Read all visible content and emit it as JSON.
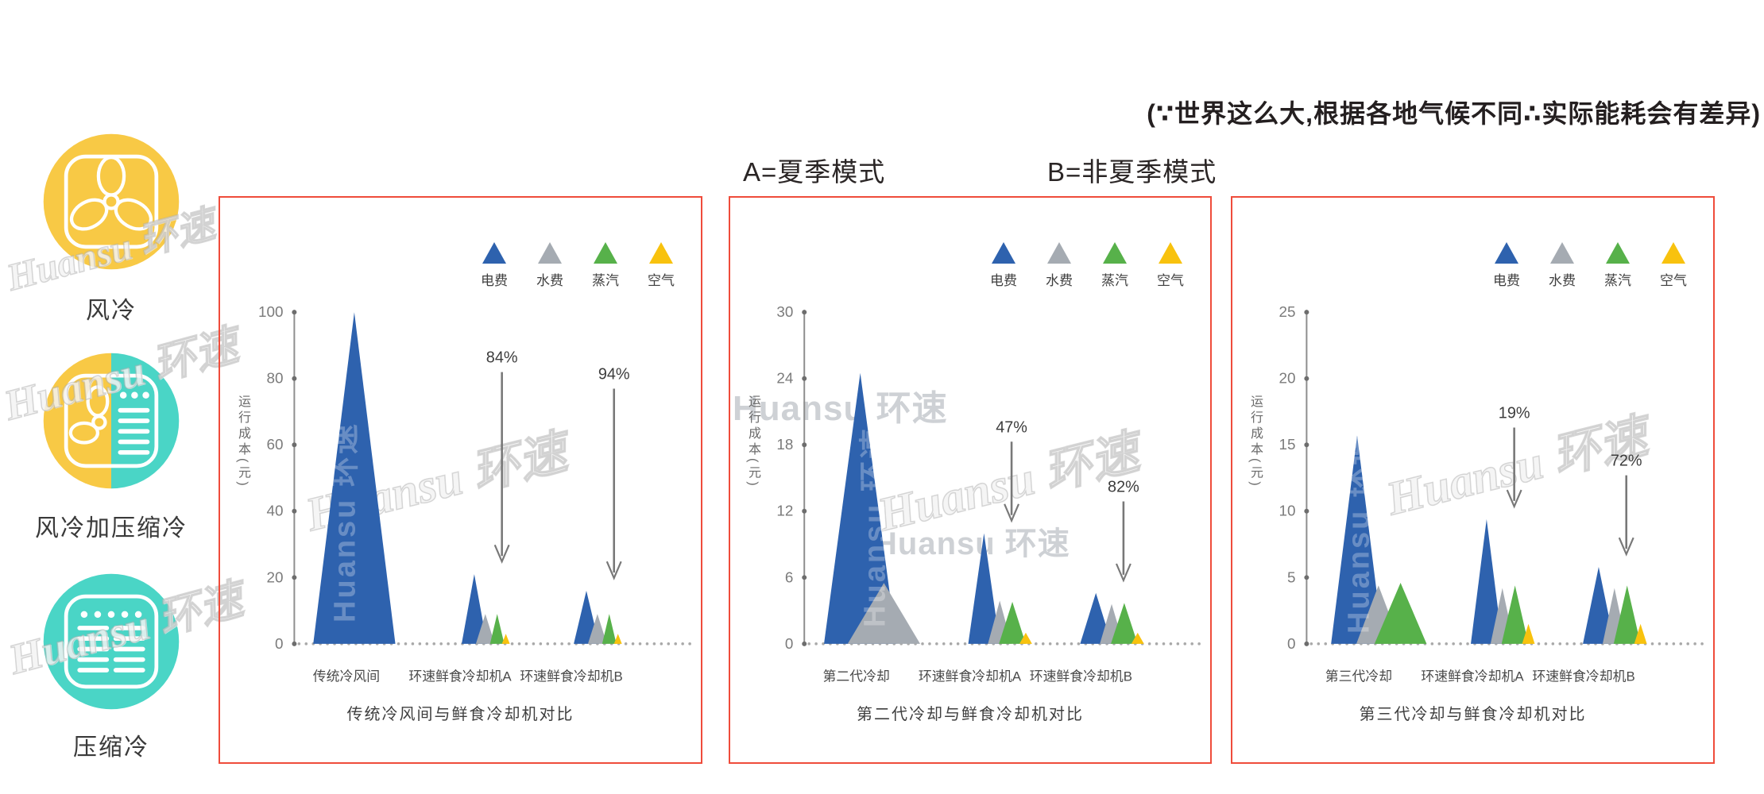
{
  "watermark": "Huansu 环速",
  "header": {
    "note": "(∵世界这么大,根据各地气候不同∴实际能耗会有差异)",
    "mode_a": "A=夏季模式",
    "mode_b": "B=非夏季模式"
  },
  "sidebar": {
    "items": [
      {
        "label": "风冷",
        "icon": "fan-icon"
      },
      {
        "label": "风冷加压缩冷",
        "icon": "fan-and-compressor-icon"
      },
      {
        "label": "压缩冷",
        "icon": "compressor-icon"
      }
    ]
  },
  "legend": [
    {
      "label": "电费",
      "color": "#2E62AE"
    },
    {
      "label": "水费",
      "color": "#A5ABB2"
    },
    {
      "label": "蒸汽",
      "color": "#57B14A"
    },
    {
      "label": "空气",
      "color": "#F8C20E"
    }
  ],
  "colors": {
    "panel_border": "#EF4C3B",
    "icon_yellow": "#F8C945",
    "icon_teal": "#4AD5C6",
    "axis": "#8E8E8E",
    "tick_dot": "#6D6D6D",
    "baseline_dot": "#A9A9A9",
    "arrow": "#787878"
  },
  "chart_data": [
    {
      "type": "area",
      "title": "传统冷风间与鲜食冷却机对比",
      "ylabel": "运行成本(元)",
      "xlabel": "",
      "ylim": [
        0,
        100
      ],
      "yticks": [
        0,
        20,
        40,
        60,
        80,
        100
      ],
      "grid": false,
      "legend_position": "top-right",
      "series_names": [
        "电费",
        "水费",
        "蒸汽",
        "空气"
      ],
      "categories": [
        "传统冷风间",
        "环速鲜食冷却机A",
        "环速鲜食冷却机B"
      ],
      "arrow_length": 240,
      "groups": [
        {
          "category": "传统冷风间",
          "wide": true,
          "values": {
            "电费": 100
          }
        },
        {
          "category": "环速鲜食冷却机A",
          "reduction_label": "84%",
          "values": {
            "电费": 21,
            "水费": 9,
            "蒸汽": 9,
            "空气": 3
          }
        },
        {
          "category": "环速鲜食冷却机B",
          "reduction_label": "94%",
          "values": {
            "电费": 16,
            "水费": 9,
            "蒸汽": 9,
            "空气": 3
          }
        }
      ]
    },
    {
      "type": "area",
      "title": "第二代冷却与鲜食冷却机对比",
      "ylabel": "运行成本(元)",
      "xlabel": "",
      "ylim": [
        0,
        30
      ],
      "yticks": [
        0,
        6,
        12,
        18,
        24,
        30
      ],
      "grid": false,
      "legend_position": "top-right",
      "series_names": [
        "电费",
        "水费",
        "蒸汽",
        "空气"
      ],
      "categories": [
        "第二代冷却",
        "环速鲜食冷却机A",
        "环速鲜食冷却机B"
      ],
      "arrow_length": 100,
      "groups": [
        {
          "category": "第二代冷却",
          "wide": true,
          "values": {
            "电费": 24.5,
            "水费": 5.5
          }
        },
        {
          "category": "环速鲜食冷却机A",
          "reduction_label": "47%",
          "values": {
            "电费": 10,
            "水费": 3.9,
            "蒸汽": 3.8,
            "空气": 1
          }
        },
        {
          "category": "环速鲜食冷却机B",
          "reduction_label": "82%",
          "values": {
            "电费": 4.6,
            "水费": 3.6,
            "蒸汽": 3.7,
            "空气": 1
          }
        }
      ]
    },
    {
      "type": "area",
      "title": "第三代冷却与鲜食冷却机对比",
      "ylabel": "运行成本(元)",
      "xlabel": "",
      "ylim": [
        0,
        25
      ],
      "yticks": [
        0,
        5,
        10,
        15,
        20,
        25
      ],
      "grid": false,
      "legend_position": "top-right",
      "series_names": [
        "电费",
        "水费",
        "蒸汽",
        "空气"
      ],
      "categories": [
        "第三代冷却",
        "环速鲜食冷却机A",
        "环速鲜食冷却机B"
      ],
      "arrow_length": 100,
      "groups": [
        {
          "category": "第三代冷却",
          "wide": true,
          "values": {
            "电费": 15.7,
            "水费": 4.4,
            "蒸汽": 4.6
          }
        },
        {
          "category": "环速鲜食冷却机A",
          "reduction_label": "19%",
          "values": {
            "电费": 9.4,
            "水费": 4.2,
            "蒸汽": 4.4,
            "空气": 1.5
          }
        },
        {
          "category": "环速鲜食冷却机B",
          "reduction_label": "72%",
          "values": {
            "电费": 5.8,
            "水费": 4.2,
            "蒸汽": 4.4,
            "空气": 1.5
          }
        }
      ]
    }
  ]
}
